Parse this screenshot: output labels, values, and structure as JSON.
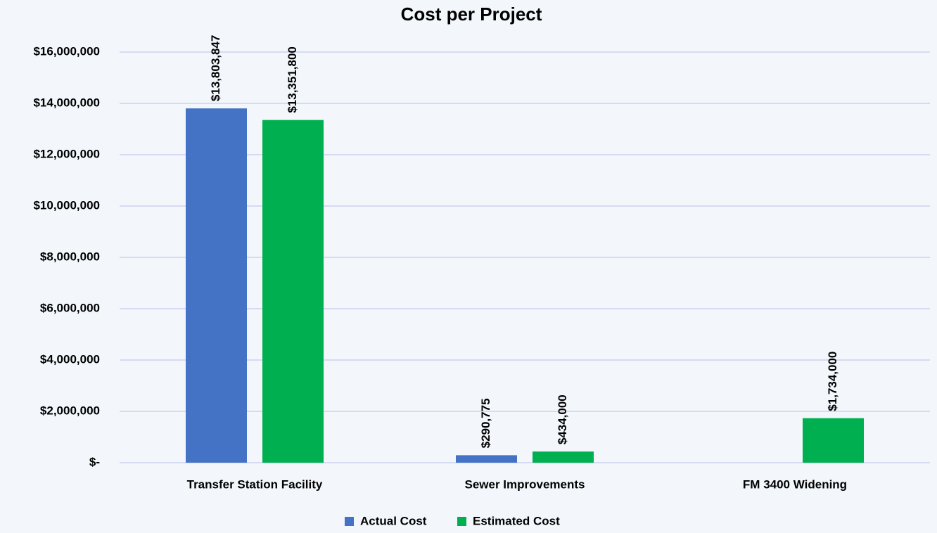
{
  "chart_data": {
    "type": "bar",
    "title": "Cost per Project",
    "categories": [
      "Transfer Station Facility",
      "Sewer Improvements",
      "FM 3400 Widening"
    ],
    "series": [
      {
        "name": "Actual Cost",
        "color": "#4472c4",
        "values": [
          13803847,
          290775,
          null
        ],
        "value_labels": [
          "$13,803,847",
          "$290,775",
          null
        ]
      },
      {
        "name": "Estimated Cost",
        "color": "#00b050",
        "values": [
          13351800,
          434000,
          1734000
        ],
        "value_labels": [
          "$13,351,800",
          "$434,000",
          "$1,734,000"
        ]
      }
    ],
    "ylim": [
      0,
      16000000
    ],
    "yticks": [
      {
        "value": 0,
        "label": "$-"
      },
      {
        "value": 2000000,
        "label": "$2,000,000"
      },
      {
        "value": 4000000,
        "label": "$4,000,000"
      },
      {
        "value": 6000000,
        "label": "$6,000,000"
      },
      {
        "value": 8000000,
        "label": "$8,000,000"
      },
      {
        "value": 10000000,
        "label": "$10,000,000"
      },
      {
        "value": 12000000,
        "label": "$12,000,000"
      },
      {
        "value": 14000000,
        "label": "$14,000,000"
      },
      {
        "value": 16000000,
        "label": "$16,000,000"
      }
    ],
    "grid": true,
    "legend": "bottom"
  }
}
